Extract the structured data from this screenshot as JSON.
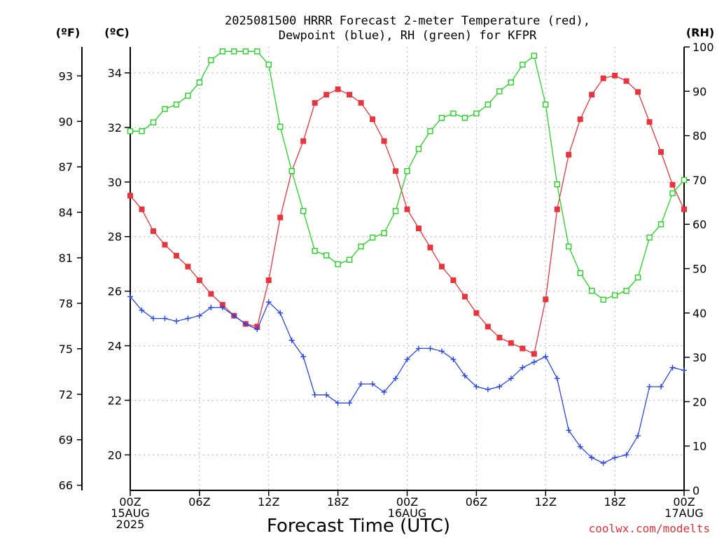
{
  "chart_data": {
    "type": "line",
    "title_line1": "2025081500 HRRR Forecast 2-meter Temperature (red),",
    "title_line2": "Dewpoint (blue), RH (green) for KFPR",
    "xlabel": "Forecast Time (UTC)",
    "credit": "coolwx.com/modelts",
    "y_left_celsius": {
      "label": "(ºC)",
      "ticks": [
        20,
        22,
        24,
        26,
        28,
        30,
        32,
        34
      ],
      "range": [
        18.7,
        34.95
      ]
    },
    "y_left_fahrenheit": {
      "label": "(ºF)",
      "ticks": [
        66,
        69,
        72,
        75,
        78,
        81,
        84,
        87,
        90,
        93
      ]
    },
    "y_right_rh": {
      "label": "(RH)",
      "ticks": [
        0,
        10,
        20,
        30,
        40,
        50,
        60,
        70,
        80,
        90,
        100
      ],
      "range": [
        0,
        100
      ]
    },
    "x_range_hours": [
      0,
      48
    ],
    "x_ticks": [
      {
        "hour": 0,
        "lines": [
          "00Z",
          "15AUG",
          "2025"
        ]
      },
      {
        "hour": 6,
        "lines": [
          "06Z"
        ]
      },
      {
        "hour": 12,
        "lines": [
          "12Z"
        ]
      },
      {
        "hour": 18,
        "lines": [
          "18Z"
        ]
      },
      {
        "hour": 24,
        "lines": [
          "00Z",
          "16AUG"
        ]
      },
      {
        "hour": 30,
        "lines": [
          "06Z"
        ]
      },
      {
        "hour": 36,
        "lines": [
          "12Z"
        ]
      },
      {
        "hour": 42,
        "lines": [
          "18Z"
        ]
      },
      {
        "hour": 48,
        "lines": [
          "00Z",
          "17AUG"
        ]
      }
    ],
    "grid": true,
    "series": [
      {
        "name": "Temperature",
        "unit": "C",
        "color": "#e8343c",
        "marker": "filled-square",
        "values": [
          29.5,
          29.0,
          28.2,
          27.7,
          27.3,
          26.9,
          26.4,
          25.9,
          25.5,
          25.1,
          24.8,
          24.7,
          26.4,
          28.7,
          30.4,
          31.5,
          32.9,
          33.2,
          33.4,
          33.2,
          32.9,
          32.3,
          31.5,
          30.4,
          29.0,
          28.3,
          27.6,
          26.9,
          26.4,
          25.8,
          25.2,
          24.7,
          24.3,
          24.1,
          23.9,
          23.7,
          25.7,
          29.0,
          31.0,
          32.3,
          33.2,
          33.8,
          33.9,
          33.7,
          33.3,
          32.2,
          31.1,
          29.9,
          29.0
        ]
      },
      {
        "name": "Dewpoint",
        "unit": "C",
        "color": "#2b46e6",
        "marker": "plus",
        "values": [
          25.8,
          25.3,
          25.0,
          25.0,
          24.9,
          25.0,
          25.1,
          25.4,
          25.4,
          25.1,
          24.8,
          24.6,
          25.6,
          25.2,
          24.2,
          23.6,
          22.2,
          22.2,
          21.9,
          21.9,
          22.6,
          22.6,
          22.3,
          22.8,
          23.5,
          23.9,
          23.9,
          23.8,
          23.5,
          22.9,
          22.5,
          22.4,
          22.5,
          22.8,
          23.2,
          23.4,
          23.6,
          22.8,
          20.9,
          20.3,
          19.9,
          19.7,
          19.9,
          20.0,
          20.7,
          22.5,
          22.5,
          23.2,
          23.1
        ]
      },
      {
        "name": "RH",
        "unit": "%",
        "color": "#22d422",
        "marker": "open-square",
        "values": [
          81,
          81,
          83,
          86,
          87,
          89,
          92,
          97,
          99,
          99,
          99,
          99,
          96,
          82,
          72,
          63,
          54,
          53,
          51,
          52,
          55,
          57,
          58,
          63,
          72,
          77,
          81,
          84,
          85,
          84,
          85,
          87,
          90,
          92,
          96,
          98,
          87,
          69,
          55,
          49,
          45,
          43,
          44,
          45,
          48,
          57,
          60,
          67,
          70
        ]
      }
    ]
  }
}
